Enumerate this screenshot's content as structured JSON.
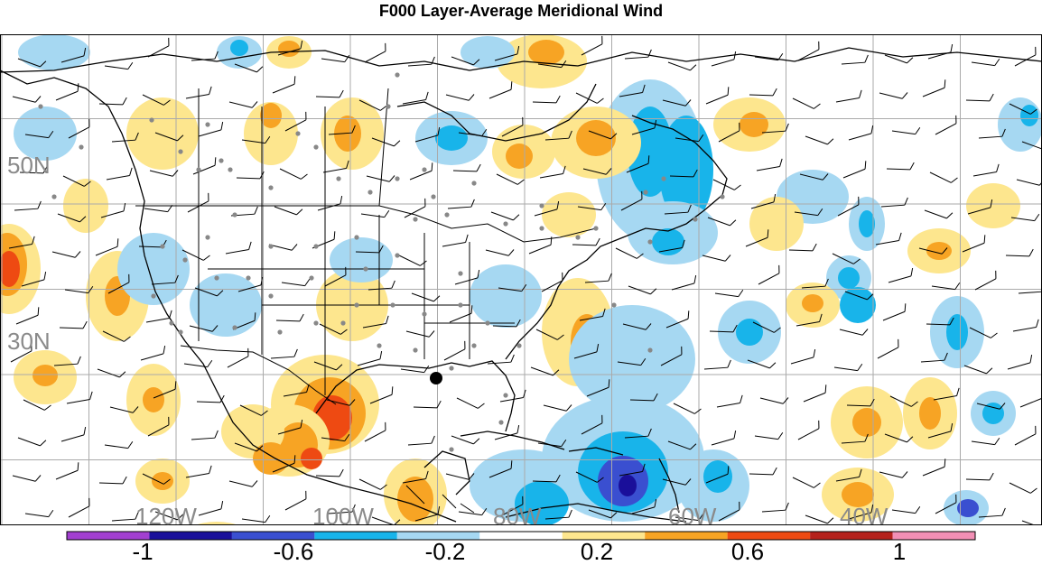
{
  "title": "F000 Layer-Average Meridional Wind",
  "lat_labels": [
    "50N",
    "30N"
  ],
  "lon_labels": [
    "120W",
    "100W",
    "80W",
    "60W",
    "40W"
  ],
  "colorbar": {
    "colors": [
      "#a23fd0",
      "#1a0f9a",
      "#3a4fd0",
      "#18b4ea",
      "#a6d8f2",
      "#ffffff",
      "#fde68e",
      "#f7a424",
      "#ee4a12",
      "#b5211c",
      "#f28fb5"
    ],
    "tick_labels": [
      "-1",
      "-0.6",
      "-0.2",
      "0.2",
      "0.6",
      "1"
    ]
  },
  "map": {
    "background": "#ffffff",
    "grid_color": "#aaaaaa",
    "station_marker_color": "#888888",
    "highlight_marker_color": "#000000"
  }
}
